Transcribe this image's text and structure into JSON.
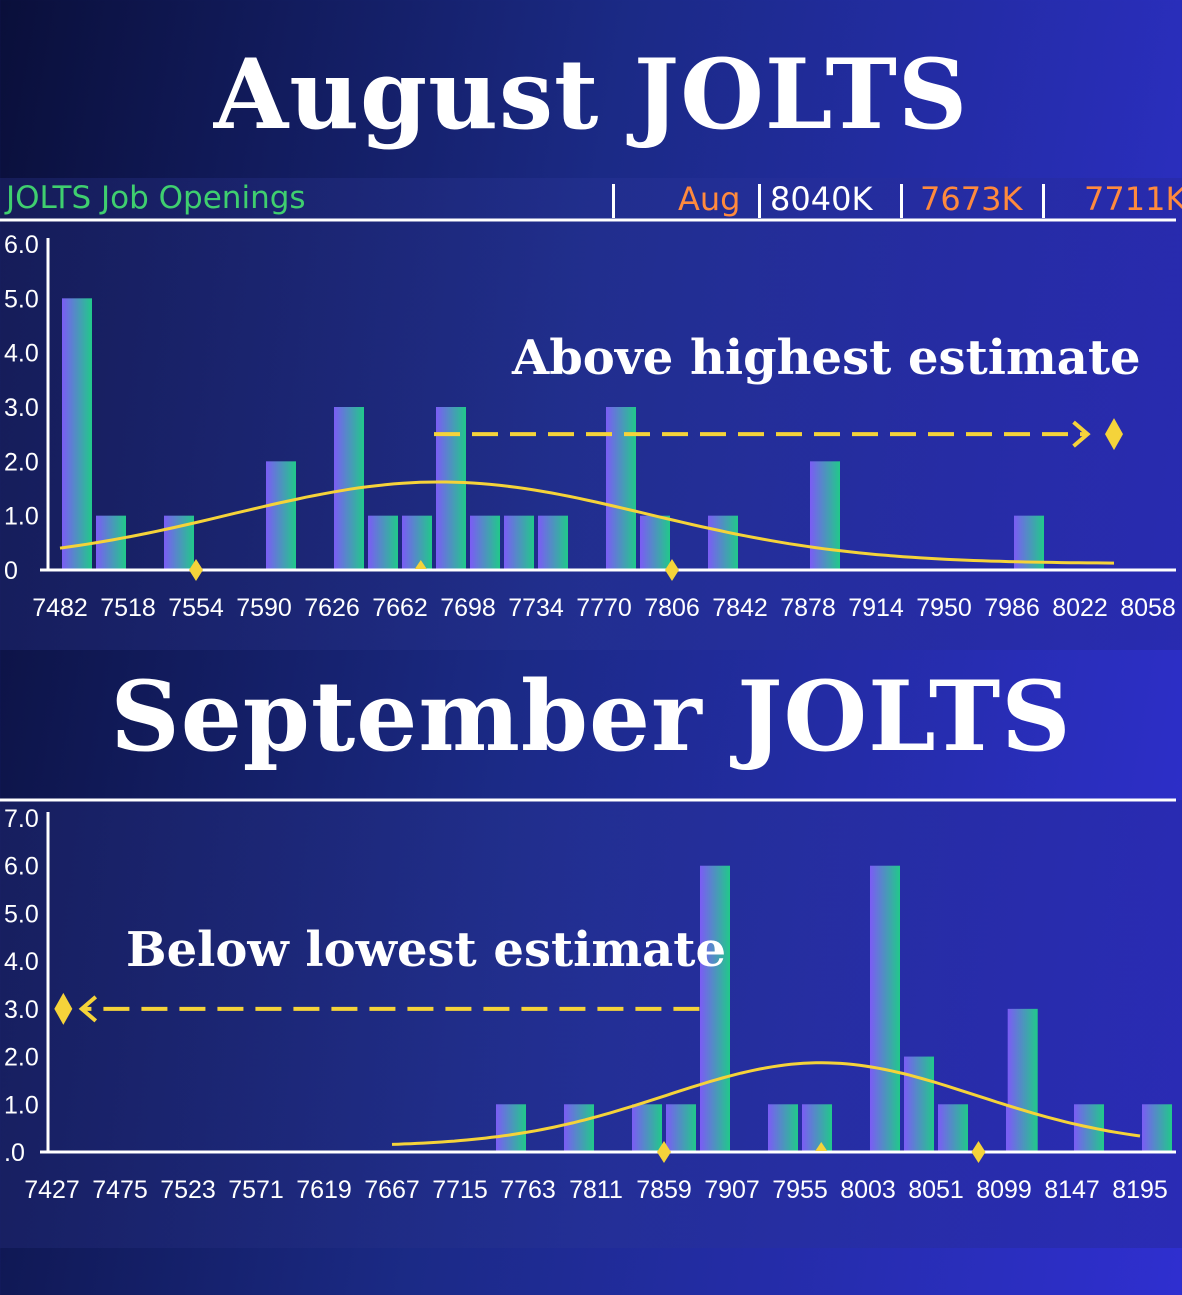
{
  "titles": {
    "august": "August JOLTS",
    "september": "September JOLTS"
  },
  "header": {
    "series_name": "JOLTS Job Openings",
    "month": "Aug",
    "actual": "8040K",
    "consensus": "7673K",
    "previous": "7711K"
  },
  "annotations": {
    "august": "Above highest estimate",
    "september": "Below lowest estimate"
  },
  "colors": {
    "bar_purple": "#7b5cf5",
    "bar_green": "#21c98a",
    "curve": "#f5d33a",
    "header_green": "#3fcf6f",
    "header_orange": "#ff8a3d"
  },
  "chart_data": [
    {
      "type": "bar",
      "title": "August JOLTS",
      "x_ticks": [
        7482,
        7518,
        7554,
        7590,
        7626,
        7662,
        7698,
        7734,
        7770,
        7806,
        7842,
        7878,
        7914,
        7950,
        7986,
        8022,
        8058
      ],
      "y_ticks": [
        "0",
        "1.0",
        "2.0",
        "3.0",
        "4.0",
        "5.0",
        "6.0"
      ],
      "ylim": [
        0,
        6
      ],
      "bin_width": 18,
      "bars": [
        {
          "x": 7482,
          "value": 5
        },
        {
          "x": 7500,
          "value": 1
        },
        {
          "x": 7536,
          "value": 1
        },
        {
          "x": 7590,
          "value": 2
        },
        {
          "x": 7626,
          "value": 3
        },
        {
          "x": 7644,
          "value": 1
        },
        {
          "x": 7662,
          "value": 1
        },
        {
          "x": 7680,
          "value": 3
        },
        {
          "x": 7698,
          "value": 1
        },
        {
          "x": 7716,
          "value": 1
        },
        {
          "x": 7734,
          "value": 1
        },
        {
          "x": 7770,
          "value": 3
        },
        {
          "x": 7788,
          "value": 1
        },
        {
          "x": 7824,
          "value": 1
        },
        {
          "x": 7878,
          "value": 2
        },
        {
          "x": 7986,
          "value": 1
        }
      ],
      "curve": {
        "mean": 7683,
        "sd": 110,
        "peak": 1.5,
        "x_start": 7482,
        "x_end": 8040
      },
      "markers": [
        {
          "shape": "diamond",
          "x": 7554
        },
        {
          "shape": "triangle",
          "x": 7673
        },
        {
          "shape": "diamond",
          "x": 7806
        },
        {
          "shape": "diamond",
          "x": 8040
        }
      ],
      "arrow": {
        "from": 7680,
        "to": 8026,
        "y": 2.5,
        "direction": "right"
      }
    },
    {
      "type": "bar",
      "title": "September JOLTS",
      "x_ticks": [
        7427,
        7475,
        7523,
        7571,
        7619,
        7667,
        7715,
        7763,
        7811,
        7859,
        7907,
        7955,
        8003,
        8051,
        8099,
        8147,
        8195
      ],
      "y_ticks": [
        ".0",
        "1.0",
        "2.0",
        "3.0",
        "4.0",
        "5.0",
        "6.0",
        "7.0"
      ],
      "ylim": [
        0,
        7
      ],
      "bin_width": 24,
      "bars": [
        {
          "x": 7739,
          "value": 1
        },
        {
          "x": 7787,
          "value": 1
        },
        {
          "x": 7835,
          "value": 1
        },
        {
          "x": 7859,
          "value": 1
        },
        {
          "x": 7883,
          "value": 6
        },
        {
          "x": 7931,
          "value": 1
        },
        {
          "x": 7955,
          "value": 1
        },
        {
          "x": 8003,
          "value": 6
        },
        {
          "x": 8027,
          "value": 2
        },
        {
          "x": 8051,
          "value": 1
        },
        {
          "x": 8099,
          "value": 1
        },
        {
          "x": 8099,
          "value": 3,
          "offset": 1
        },
        {
          "x": 8147,
          "value": 1
        },
        {
          "x": 8195,
          "value": 1
        }
      ],
      "curve": {
        "mean": 7970,
        "sd": 110,
        "peak": 1.75,
        "x_start": 7667,
        "x_end": 8195
      },
      "markers": [
        {
          "shape": "diamond",
          "x": 7859
        },
        {
          "shape": "triangle",
          "x": 7970
        },
        {
          "shape": "diamond",
          "x": 8081
        },
        {
          "shape": "diamond",
          "x": 7435
        }
      ],
      "arrow": {
        "from": 7884,
        "to": 7448,
        "y": 3.0,
        "direction": "left"
      }
    }
  ]
}
